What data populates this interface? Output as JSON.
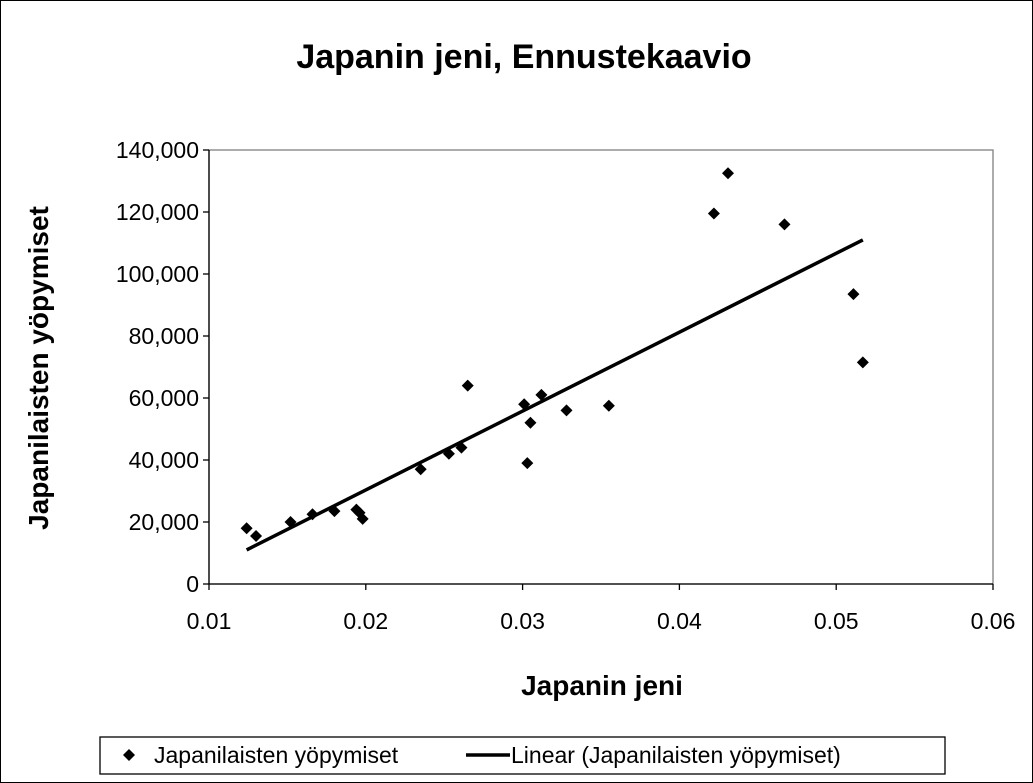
{
  "chart_data": {
    "type": "scatter",
    "title": "Japanin jeni, Ennustekaavio",
    "xlabel": "Japanin jeni",
    "ylabel": "Japanilaisten yöpymiset",
    "xlim": [
      0.01,
      0.06
    ],
    "ylim": [
      0,
      140000
    ],
    "x_ticks": [
      "0.01",
      "0.02",
      "0.03",
      "0.04",
      "0.05",
      "0.06"
    ],
    "y_ticks": [
      "0",
      "20,000",
      "40,000",
      "60,000",
      "80,000",
      "100,000",
      "120,000",
      "140,000"
    ],
    "grid": false,
    "legend_position": "bottom",
    "series": [
      {
        "name": "Japanilaisten yöpymiset",
        "marker": "diamond",
        "color": "#000000",
        "x": [
          0.0124,
          0.013,
          0.0152,
          0.0166,
          0.018,
          0.0194,
          0.0196,
          0.0198,
          0.0235,
          0.0253,
          0.0261,
          0.0265,
          0.0301,
          0.0303,
          0.0305,
          0.0312,
          0.0328,
          0.0355,
          0.0422,
          0.0431,
          0.0467,
          0.0511,
          0.0517
        ],
        "y": [
          18000,
          15500,
          20000,
          22500,
          23500,
          24000,
          23000,
          21000,
          37000,
          42000,
          44000,
          64000,
          58000,
          39000,
          52000,
          61000,
          56000,
          57500,
          119500,
          132500,
          116000,
          93500,
          71500
        ]
      },
      {
        "name": "Linear (Japanilaisten yöpymiset)",
        "type": "line",
        "color": "#000000",
        "x": [
          0.0124,
          0.0517
        ],
        "y": [
          11000,
          111000
        ]
      }
    ]
  }
}
